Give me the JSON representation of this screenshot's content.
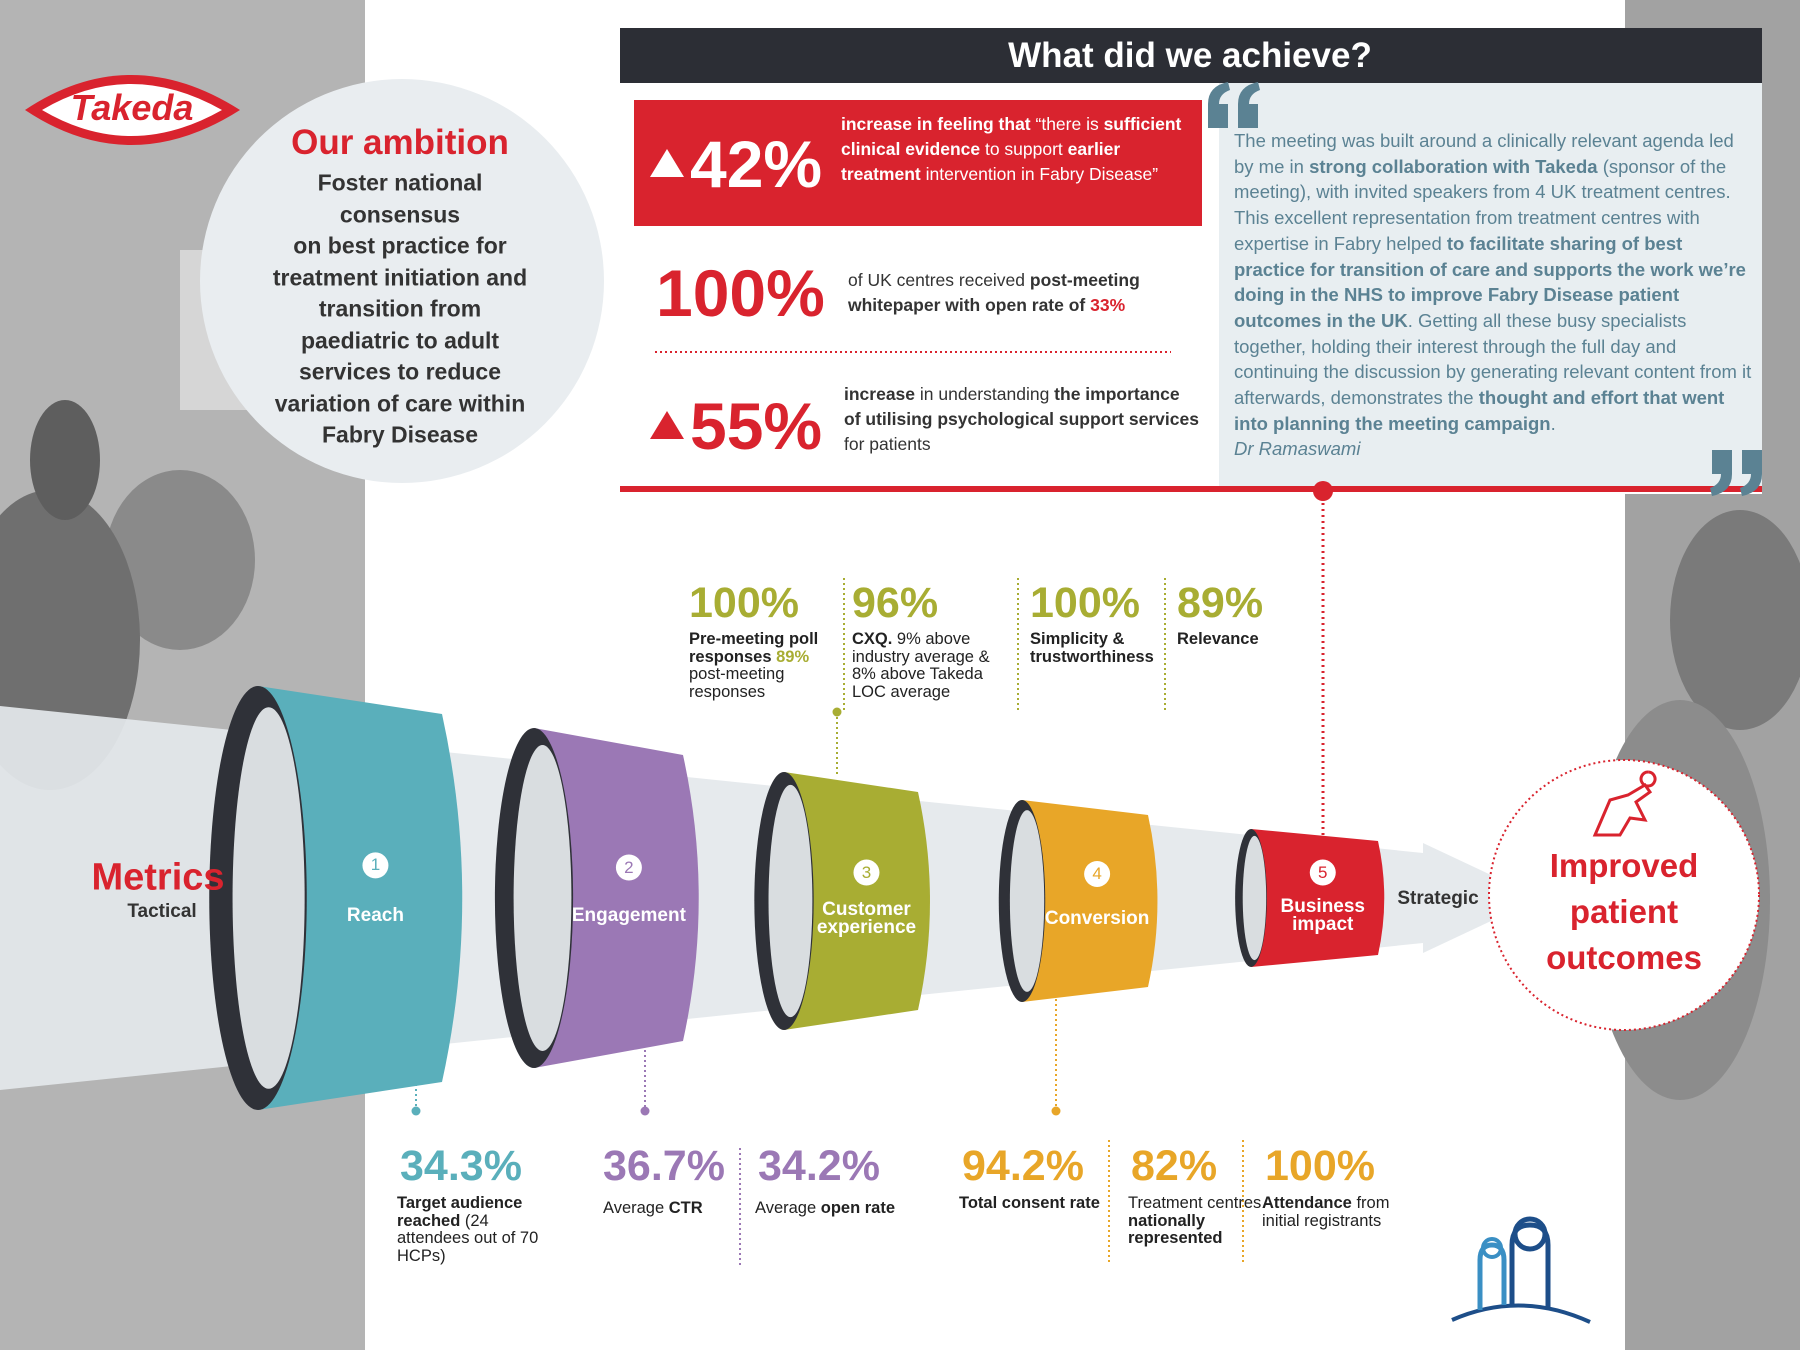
{
  "logo": {
    "text": "Takeda"
  },
  "ambition": {
    "title": "Our ambition",
    "lines": [
      "Foster national",
      "consensus",
      "on best practice for",
      "treatment initiation and",
      "transition from",
      "paediatric to adult",
      "services to reduce",
      "variation of care within",
      "Fabry Disease"
    ]
  },
  "achieve": {
    "title": "What did we achieve?",
    "stats": [
      {
        "value": "42%",
        "arrow": true,
        "segments": [
          {
            "text": "increase in feeling that ",
            "bold": true
          },
          {
            "text": "“there is "
          },
          {
            "text": "sufficient clinical evidence",
            "bold": true
          },
          {
            "text": " to support "
          },
          {
            "text": "earlier treatment",
            "bold": true
          },
          {
            "text": " intervention in Fabry Disease”"
          }
        ]
      },
      {
        "value": "100%",
        "arrow": false,
        "segments": [
          {
            "text": "of UK centres received "
          },
          {
            "text": "post-meeting whitepaper with open rate of ",
            "bold": true
          },
          {
            "text": "33%",
            "bold": true,
            "color": "#d9232e"
          }
        ]
      },
      {
        "value": "55%",
        "arrow": true,
        "segments": [
          {
            "text": "increase",
            "bold": true
          },
          {
            "text": " in understanding "
          },
          {
            "text": "the importance of utilising psychological support services",
            "bold": true
          },
          {
            "text": " for patients"
          }
        ]
      }
    ],
    "quote": {
      "segments": [
        {
          "text": "The meeting was built around a clinically relevant agenda led by me in "
        },
        {
          "text": "strong collaboration with Takeda",
          "bold": true
        },
        {
          "text": " (sponsor of the meeting), with invited speakers from 4 UK treatment centres. This excellent representation from treatment centres with expertise in Fabry helped "
        },
        {
          "text": "to facilitate sharing of best practice for transition of care and supports the work we’re doing in the NHS to improve Fabry Disease patient outcomes in the UK",
          "bold": true
        },
        {
          "text": ". Getting all these busy specialists together, holding their interest through the full day and continuing the discussion by generating relevant content from it afterwards, demonstrates the "
        },
        {
          "text": "thought and effort that went into planning the meeting campaign",
          "bold": true
        },
        {
          "text": "."
        }
      ],
      "author": "Dr Ramaswami"
    }
  },
  "funnel": {
    "left_title": "Metrics",
    "left_subtitle": "Tactical",
    "stages": [
      {
        "number": "1",
        "label": "Reach",
        "color": "#5aafbb"
      },
      {
        "number": "2",
        "label": "Engagement",
        "color": "#9b78b5"
      },
      {
        "number": "3",
        "label": "Customer experience",
        "color": "#a8ad33"
      },
      {
        "number": "4",
        "label": "Conversion",
        "color": "#e8a628"
      },
      {
        "number": "5",
        "label": "Business impact",
        "color": "#d9232e"
      }
    ],
    "strategic": "Strategic",
    "outcome": [
      "Improved",
      "patient",
      "outcomes"
    ]
  },
  "top_metrics": [
    {
      "value": "100%",
      "color": "#a8ad33",
      "segments": [
        {
          "text": "Pre-meeting poll responses ",
          "bold": true
        },
        {
          "text": "89%",
          "bold": true,
          "color": "#a8ad33"
        },
        {
          "text": " post-meeting responses"
        }
      ]
    },
    {
      "value": "96%",
      "color": "#a8ad33",
      "segments": [
        {
          "text": "CXQ.",
          "bold": true
        },
        {
          "text": " 9% above industry average & 8% above Takeda LOC average"
        }
      ]
    },
    {
      "value": "100%",
      "color": "#a8ad33",
      "segments": [
        {
          "text": "Simplicity & trustworthiness",
          "bold": true
        }
      ]
    },
    {
      "value": "89%",
      "color": "#a8ad33",
      "segments": [
        {
          "text": "Relevance",
          "bold": true
        }
      ]
    }
  ],
  "bottom_metrics": [
    {
      "value": "34.3%",
      "color": "#5aafbb",
      "segments": [
        {
          "text": "Target audience reached",
          "bold": true
        },
        {
          "text": " (24 attendees out of 70 HCPs)"
        }
      ]
    },
    {
      "value": "36.7%",
      "color": "#9b78b5",
      "segments": [
        {
          "text": "Average "
        },
        {
          "text": "CTR",
          "bold": true
        }
      ]
    },
    {
      "value": "34.2%",
      "color": "#9b78b5",
      "segments": [
        {
          "text": "Average "
        },
        {
          "text": "open rate",
          "bold": true
        }
      ]
    },
    {
      "value": "94.2%",
      "color": "#e8a628",
      "segments": [
        {
          "text": "Total consent rate",
          "bold": true
        }
      ]
    },
    {
      "value": "82%",
      "color": "#e8a628",
      "segments": [
        {
          "text": "Treatment centres "
        },
        {
          "text": "nationally represented",
          "bold": true
        }
      ]
    },
    {
      "value": "100%",
      "color": "#e8a628",
      "segments": [
        {
          "text": "Attendance",
          "bold": true
        },
        {
          "text": " from initial registrants"
        }
      ]
    }
  ]
}
